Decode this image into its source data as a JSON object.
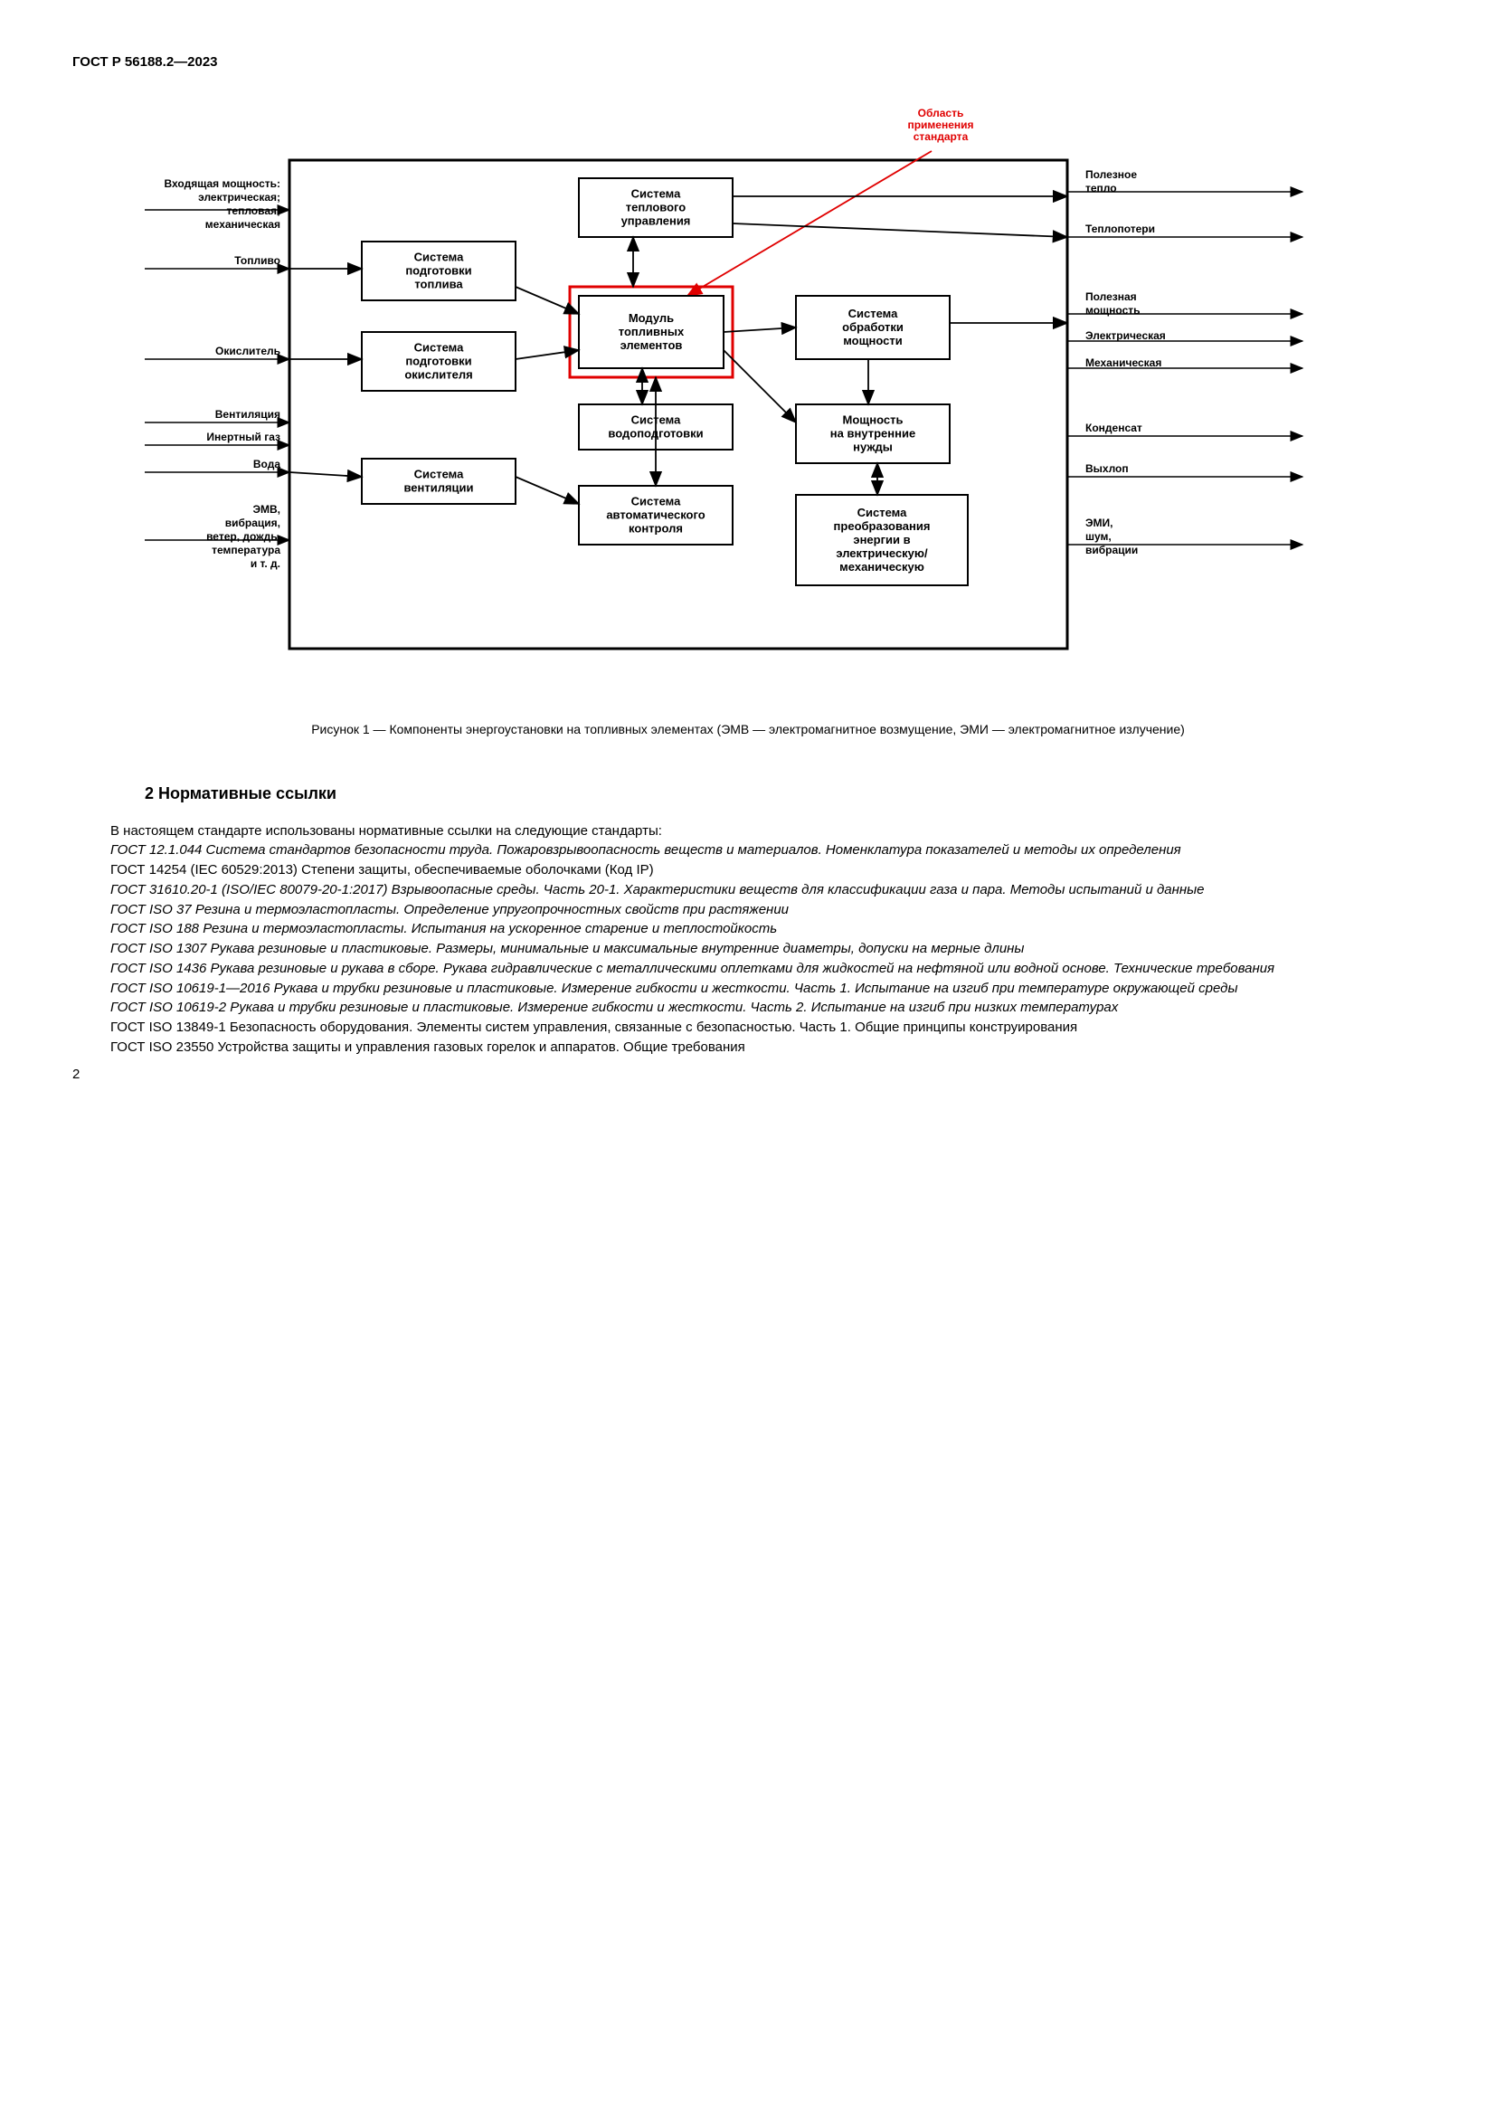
{
  "header": "ГОСТ Р 56188.2—2023",
  "page_number": "2",
  "diagram": {
    "inputs_left": [
      "Входящая мощность:",
      "электрическая;",
      "тепловая;",
      "механическая",
      "Топливо",
      "Окислитель",
      "Вентиляция",
      "Инертный газ",
      "Вода",
      "ЭМВ,",
      "вибрация,",
      "ветер, дождь,",
      "температура",
      "и т. д."
    ],
    "outputs_right": [
      "Полезное",
      "тепло",
      "Теплопотери",
      "Полезная",
      "мощность",
      "Электрическая",
      "Механическая",
      "Конденсат",
      "Выхлоп",
      "ЭМИ,",
      "шум,",
      "вибрации"
    ],
    "boxes": {
      "thermal_mgmt": "Система\nтеплового\nуправления",
      "fuel_proc": "Система\nподготовки\nтоплива",
      "fc_module": "Модуль\nтопливных\nэлементов",
      "power_cond": "Система\nобработки\nмощности",
      "oxid_proc": "Система\nподготовки\nокислителя",
      "water_mgmt": "Система\nводоподготовки",
      "internal_power": "Мощность\nна внутренние\nнужды",
      "vent": "Система\nвентиляции",
      "auto_ctrl": "Система\nавтоматического\nконтроля",
      "onboard_storage": "Система\nпреобразования\nэнергии в\nэлектрическую/\nмеханическую"
    },
    "scope_label": "Область\nприменения\nстандарта",
    "colors": {
      "red": "#e00000",
      "black": "#000000",
      "box_border": "#000000",
      "outer_border": "#000000"
    }
  },
  "caption": "Рисунок 1 — Компоненты энергоустановки на топливных элементах (ЭМВ — электромагнитное возмущение, ЭМИ — электромагнитное излучение)",
  "section_title": "2  Нормативные ссылки",
  "intro_line": "В настоящем стандарте использованы нормативные ссылки на следующие стандарты:",
  "refs": [
    {
      "italic": true,
      "text": "ГОСТ 12.1.044  Система стандартов безопасности труда. Пожаровзрывоопасность веществ и материалов. Номенклатура показателей и методы их определения"
    },
    {
      "italic": false,
      "text": "ГОСТ 14254 (IEC 60529:2013)  Степени защиты, обеспечиваемые оболочками (Код IP)"
    },
    {
      "italic": true,
      "text": "ГОСТ 31610.20-1 (ISO/IEC 80079-20-1:2017)  Взрывоопасные среды. Часть 20-1. Характеристики веществ для классификации газа и пара. Методы испытаний и данные"
    },
    {
      "italic": true,
      "text": "ГОСТ ISO 37 Резина и термоэластопласты. Определение упругопрочностных свойств при растяжении"
    },
    {
      "italic": true,
      "text": "ГОСТ ISO 188 Резина и термоэластопласты. Испытания на ускоренное старение и теплостойкость"
    },
    {
      "italic": true,
      "text": "ГОСТ ISO 1307  Рукава резиновые и пластиковые. Размеры, минимальные и максимальные внутренние диаметры, допуски на мерные длины"
    },
    {
      "italic": true,
      "text": "ГОСТ ISO 1436  Рукава резиновые и рукава в сборе. Рукава гидравлические с металлическими оплетками для жидкостей на нефтяной или водной основе. Технические требования"
    },
    {
      "italic": true,
      "text": "ГОСТ ISO 10619-1—2016 Рукава и трубки резиновые и пластиковые. Измерение гибкости и жесткости. Часть 1. Испытание на изгиб при температуре окружающей среды"
    },
    {
      "italic": true,
      "text": "ГОСТ ISO 10619-2  Рукава и трубки резиновые и пластиковые. Измерение гибкости и жесткости. Часть 2. Испытание на изгиб при низких температурах"
    },
    {
      "italic": false,
      "text": "ГОСТ ISO 13849-1  Безопасность оборудования. Элементы систем управления, связанные с безопасностью. Часть 1. Общие принципы конструирования"
    },
    {
      "italic": false,
      "text": "ГОСТ ISO 23550  Устройства защиты и управления газовых горелок и аппаратов. Общие требования"
    }
  ]
}
